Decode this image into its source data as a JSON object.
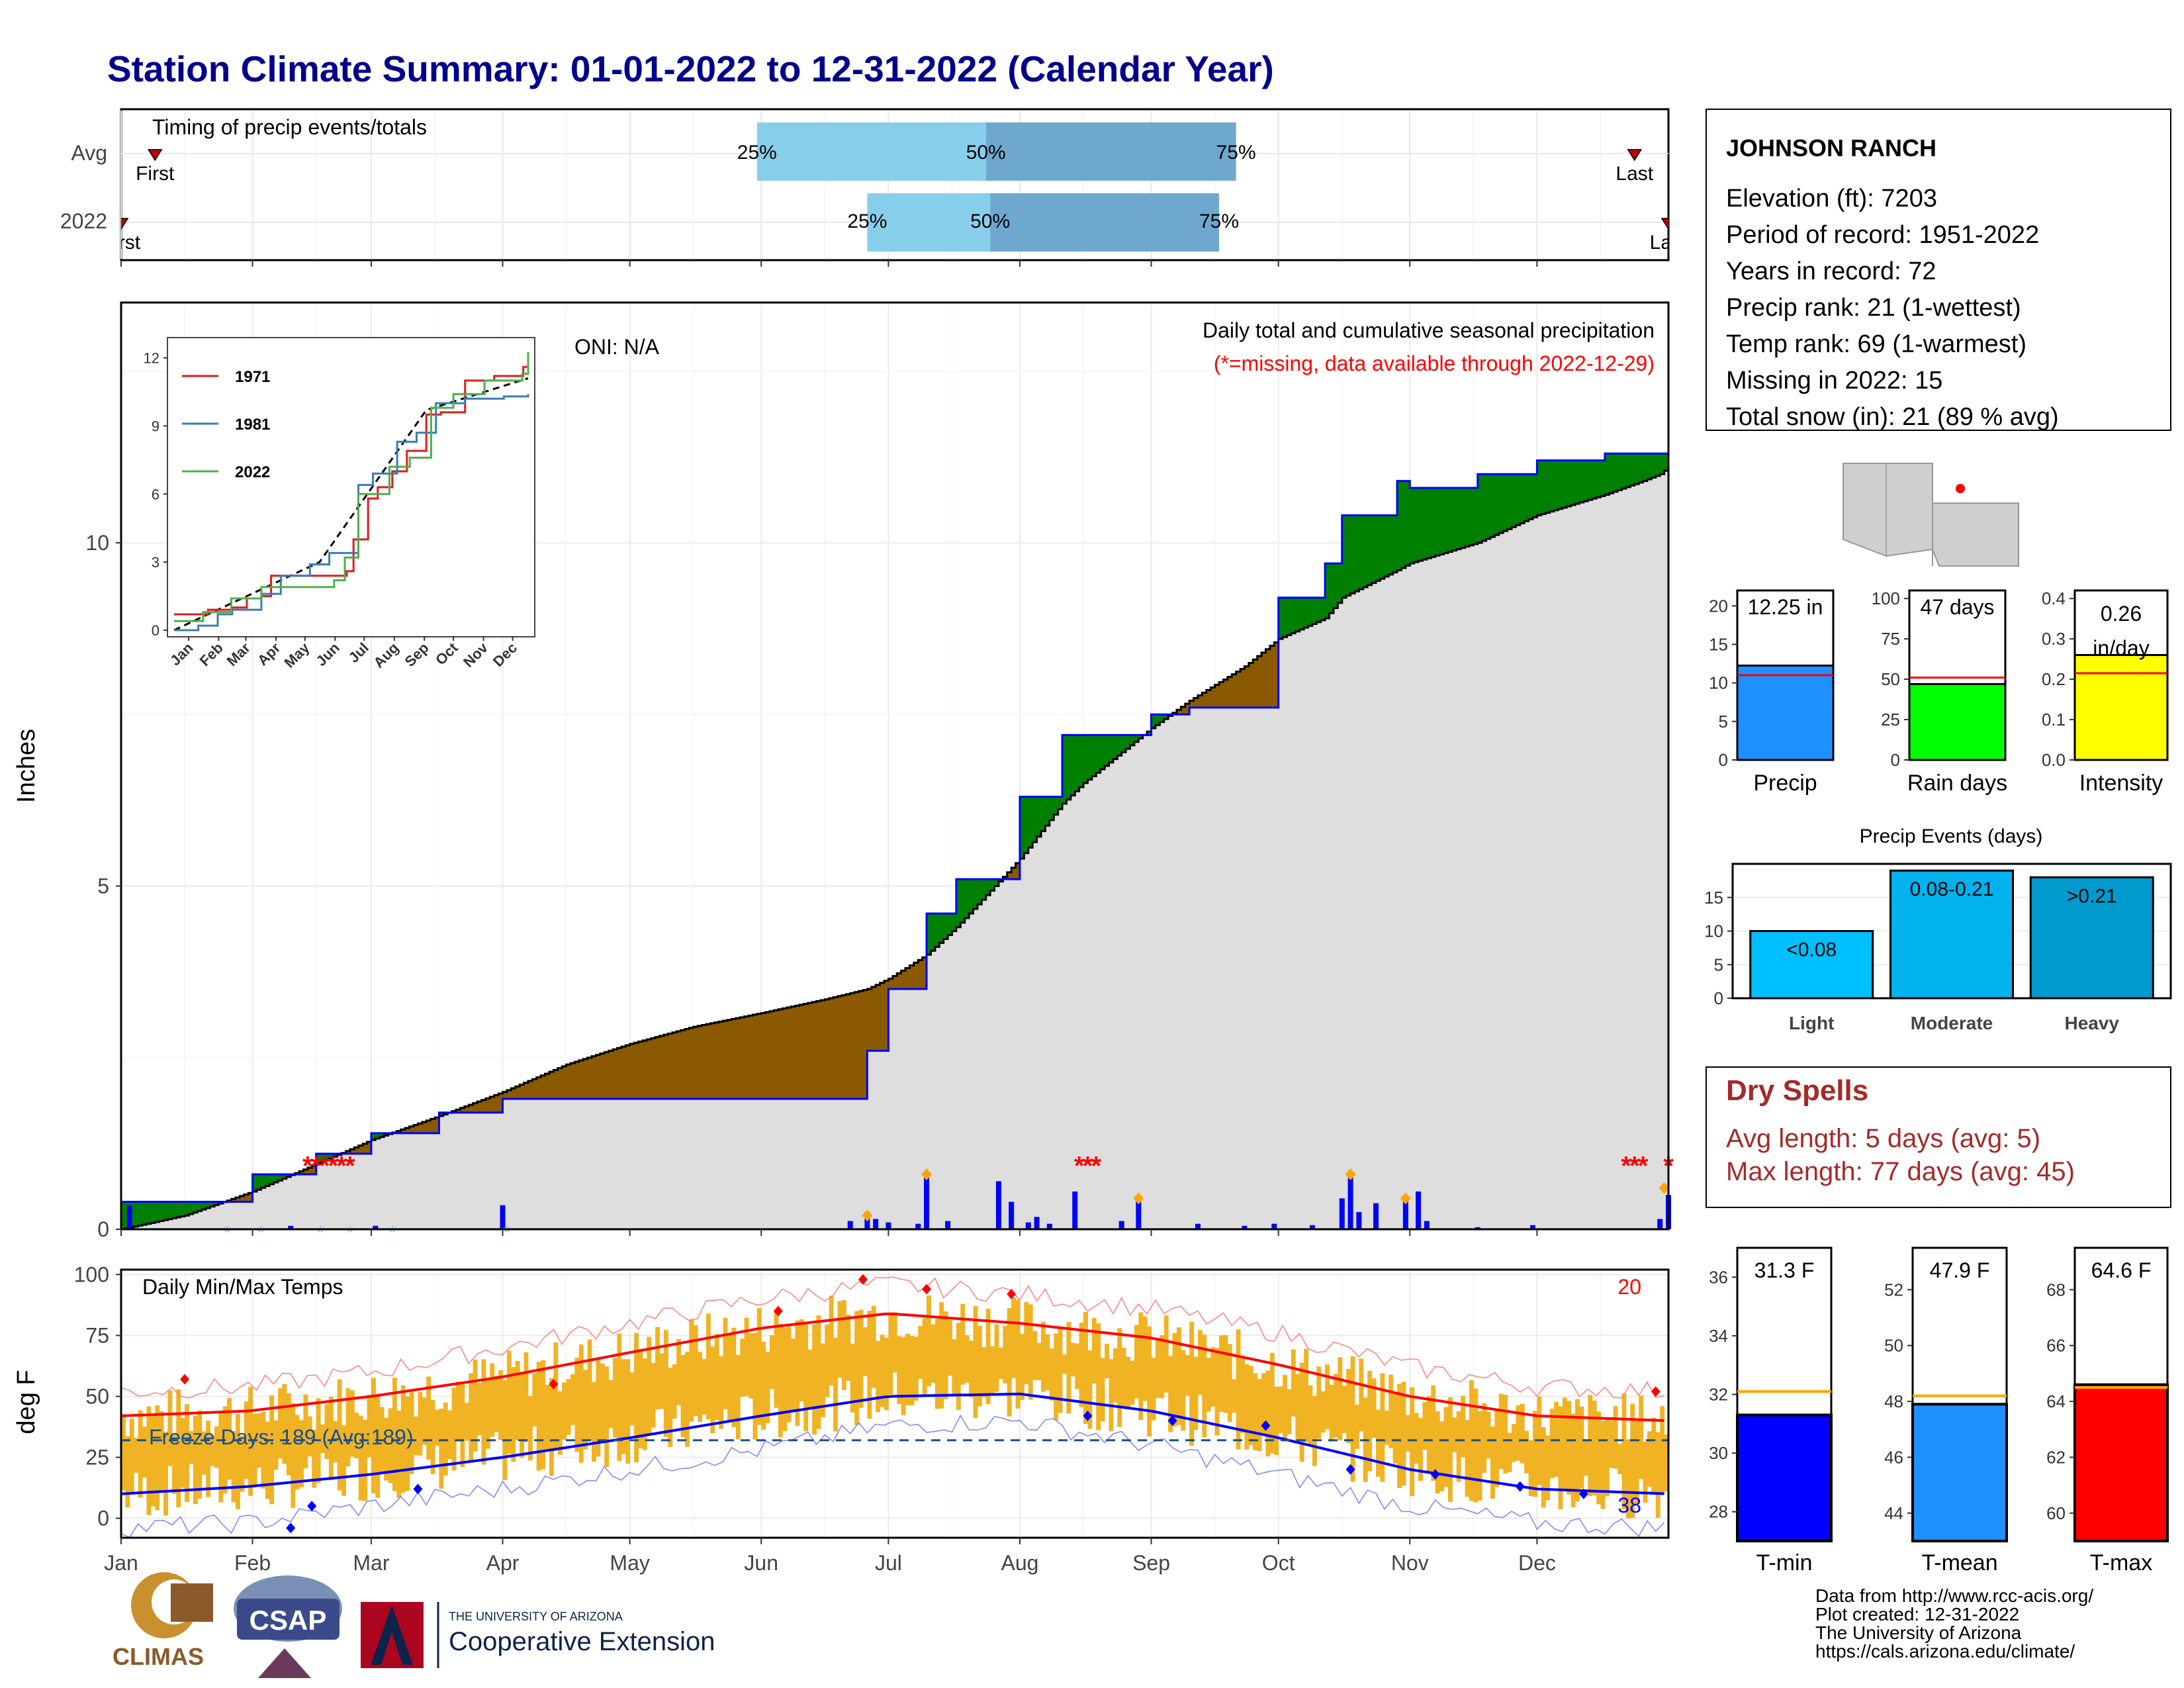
{
  "title": "Station Climate Summary: 01-01-2022 to 12-31-2022 (Calendar Year)",
  "months": [
    "Jan",
    "Feb",
    "Mar",
    "Apr",
    "May",
    "Jun",
    "Jul",
    "Aug",
    "Sep",
    "Oct",
    "Nov",
    "Dec"
  ],
  "timing": {
    "label": "Timing of precip events/totals",
    "rows": [
      "Avg",
      "2022"
    ],
    "avg": {
      "first": "First",
      "last": "Last",
      "p25": "25%",
      "p50": "50%",
      "p75": "75%",
      "first_day": 8,
      "last_day": 357,
      "p25_day": 150,
      "p50_day": 204,
      "p75_day": 263
    },
    "y2022": {
      "first": "First",
      "last": "Last",
      "p25": "25%",
      "p50": "50%",
      "p75": "75%",
      "first_day": 0,
      "last_day": 365,
      "p25_day": 176,
      "p50_day": 205,
      "p75_day": 259
    }
  },
  "main": {
    "ylabel": "Inches",
    "oni": "ONI: N/A",
    "subtitle": "Daily total and cumulative seasonal precipitation",
    "missing_note": "(*=missing, data available through 2022-12-29)",
    "yticks": [
      "0",
      "5",
      "10"
    ],
    "ymax": 13.5
  },
  "inset": {
    "yticks": [
      "0",
      "3",
      "6",
      "9",
      "12"
    ],
    "legend": [
      {
        "name": "1971",
        "color": "#e41a1c"
      },
      {
        "name": "1981",
        "color": "#377eb8"
      },
      {
        "name": "2022",
        "color": "#4daf4a"
      }
    ]
  },
  "temps": {
    "label": "Daily Min/Max Temps",
    "ylabel": "deg F",
    "yticks": [
      "0",
      "25",
      "50",
      "75",
      "100"
    ],
    "freeze": "Freeze Days: 189 (Avg:189)",
    "count_hot": "20",
    "count_cold": "38"
  },
  "station": {
    "name": "JOHNSON RANCH",
    "lines": [
      "Elevation (ft): 7203",
      "Period of record: 1951-2022",
      "Years in record: 72",
      "Precip rank: 21 (1-wettest)",
      "Temp rank: 69 (1-warmest)",
      "Missing in 2022: 15",
      "Total snow (in): 21 (89 % avg)"
    ]
  },
  "mini_bars": [
    {
      "label": "Precip",
      "value_text": "12.25 in",
      "value": 12.25,
      "avg": 11,
      "ymax": 22,
      "ticks": [
        "0",
        "5",
        "10",
        "15",
        "20"
      ],
      "tickvals": [
        0,
        5,
        10,
        15,
        20
      ],
      "color": "#1e90ff"
    },
    {
      "label": "Rain days",
      "value_text": "47 days",
      "value": 47,
      "avg": 51,
      "ymax": 105,
      "ticks": [
        "0",
        "25",
        "50",
        "75",
        "100"
      ],
      "tickvals": [
        0,
        25,
        50,
        75,
        100
      ],
      "color": "#00ff00"
    },
    {
      "label": "Intensity",
      "value_text": "0.26 in/day",
      "value": 0.26,
      "avg": 0.215,
      "ymax": 0.42,
      "ticks": [
        "0.0",
        "0.1",
        "0.2",
        "0.3",
        "0.4"
      ],
      "tickvals": [
        0,
        0.1,
        0.2,
        0.3,
        0.4
      ],
      "color": "#ffff00"
    }
  ],
  "events": {
    "title": "Precip Events (days)",
    "ticks": [
      "0",
      "5",
      "10",
      "15"
    ],
    "bars": [
      {
        "label": "Light",
        "value": 10,
        "text": "<0.08",
        "color": "#00bfff"
      },
      {
        "label": "Moderate",
        "value": 19,
        "text": "0.08-0.21",
        "color": "#00b2ee"
      },
      {
        "label": "Heavy",
        "value": 18,
        "text": ">0.21",
        "color": "#009acd"
      }
    ]
  },
  "dry_spells": {
    "title": "Dry Spells",
    "avg": "Avg length: 5 days (avg: 5)",
    "max": "Max length: 77 days (avg: 45)"
  },
  "temp_bars": [
    {
      "label": "T-min",
      "value_text": "31.3 F",
      "value": 31.3,
      "avg": 32.1,
      "ymin": 27,
      "ymax": 37,
      "ticks": [
        "28",
        "30",
        "32",
        "34",
        "36"
      ],
      "tickvals": [
        28,
        30,
        32,
        34,
        36
      ],
      "color": "#0000ff"
    },
    {
      "label": "T-mean",
      "value_text": "47.9 F",
      "value": 47.9,
      "avg": 48.2,
      "ymin": 43,
      "ymax": 53.5,
      "ticks": [
        "44",
        "46",
        "48",
        "50",
        "52"
      ],
      "tickvals": [
        44,
        46,
        48,
        50,
        52
      ],
      "color": "#1e90ff"
    },
    {
      "label": "T-max",
      "value_text": "64.6 F",
      "value": 64.6,
      "avg": 64.5,
      "ymin": 59,
      "ymax": 69.5,
      "ticks": [
        "60",
        "62",
        "64",
        "66",
        "68"
      ],
      "tickvals": [
        60,
        62,
        64,
        66,
        68
      ],
      "color": "#ff0000"
    }
  ],
  "footer": {
    "lines": [
      "Data from http://www.rcc-acis.org/",
      "Plot created: 12-31-2022",
      "The University of Arizona",
      "https://cals.arizona.edu/climate/"
    ],
    "logo_climas": "CLIMAS",
    "logo_csap": "CSAP",
    "ua_small": "THE UNIVERSITY OF ARIZONA",
    "ua_big": "Cooperative Extension"
  },
  "chart_data": [
    {
      "type": "area",
      "title": "Daily total and cumulative seasonal precipitation",
      "ylabel": "Inches",
      "ylim": [
        0,
        13.5
      ],
      "x": [
        0,
        15,
        31,
        46,
        59,
        75,
        90,
        105,
        120,
        135,
        151,
        166,
        176,
        181,
        190,
        197,
        212,
        222,
        227,
        243,
        252,
        265,
        273,
        284,
        288,
        301,
        304,
        320,
        334,
        350,
        359,
        363,
        365
      ],
      "cumulative_2022": [
        0.4,
        0.4,
        0.8,
        1.1,
        1.4,
        1.7,
        1.9,
        1.9,
        1.9,
        1.9,
        1.9,
        1.9,
        2.6,
        3.5,
        4.6,
        5.1,
        6.3,
        7.2,
        7.2,
        7.5,
        7.6,
        7.6,
        9.2,
        9.7,
        10.4,
        10.9,
        10.8,
        11.0,
        11.2,
        11.3,
        11.3,
        11.3,
        12.25
      ],
      "cumulative_avg": [
        0,
        0.2,
        0.55,
        0.95,
        1.3,
        1.65,
        2.0,
        2.4,
        2.7,
        2.95,
        3.15,
        3.35,
        3.5,
        3.65,
        4.0,
        4.4,
        5.4,
        6.2,
        6.5,
        7.3,
        7.7,
        8.2,
        8.6,
        8.9,
        9.2,
        9.6,
        9.7,
        10.0,
        10.4,
        10.7,
        10.9,
        11.0,
        11.1
      ]
    },
    {
      "type": "line",
      "title": "Daily Min/Max Temps",
      "ylabel": "deg F",
      "ylim": [
        -8,
        102
      ],
      "x": [
        0,
        30,
        59,
        90,
        120,
        151,
        181,
        212,
        243,
        273,
        304,
        334,
        365
      ],
      "series": [
        {
          "name": "avg max",
          "values": [
            42,
            44,
            50,
            58,
            68,
            78,
            84,
            80,
            74,
            63,
            50,
            42,
            40
          ]
        },
        {
          "name": "avg min",
          "values": [
            10,
            13,
            18,
            25,
            33,
            42,
            50,
            51,
            44,
            33,
            20,
            12,
            10
          ]
        },
        {
          "name": "record max",
          "values": [
            52,
            54,
            60,
            70,
            80,
            90,
            96,
            92,
            86,
            76,
            62,
            54,
            52
          ]
        },
        {
          "name": "record min",
          "values": [
            -4,
            -2,
            5,
            12,
            20,
            28,
            38,
            40,
            30,
            18,
            5,
            -2,
            -4
          ]
        }
      ]
    }
  ]
}
